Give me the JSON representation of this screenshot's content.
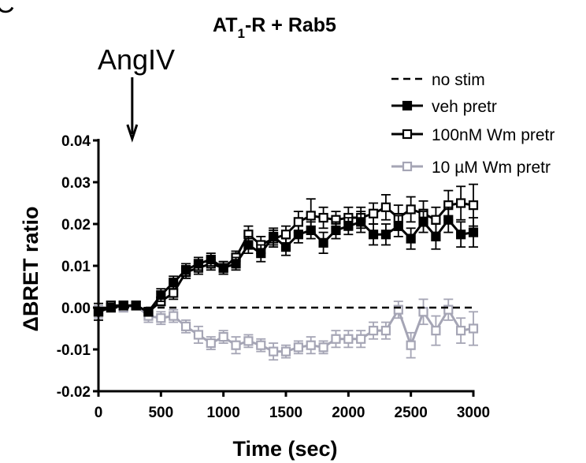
{
  "panel_label": "C",
  "chart_data": {
    "type": "line",
    "title_main": "AT",
    "title_sub": "1",
    "title_tail": "-R + Rab5",
    "annotation": {
      "text": "AngIV",
      "x": 270
    },
    "xlabel": "Time (sec)",
    "ylabel": "ΔBRET ratio",
    "xlim": [
      0,
      3000
    ],
    "ylim": [
      -0.02,
      0.04
    ],
    "xticks": [
      0,
      500,
      1000,
      1500,
      2000,
      2500,
      3000
    ],
    "xtick_labels": [
      "0",
      "500",
      "1000",
      "1500",
      "2000",
      "2500",
      "3000"
    ],
    "yticks": [
      -0.02,
      -0.01,
      0.0,
      0.01,
      0.02,
      0.03,
      0.04
    ],
    "ytick_labels": [
      "-0.02",
      "-0.01",
      "0.00",
      "0.01",
      "0.02",
      "0.03",
      "0.04"
    ],
    "grid": false,
    "legend_position": "top-right",
    "x": [
      0,
      100,
      200,
      300,
      400,
      500,
      600,
      700,
      800,
      900,
      1000,
      1100,
      1200,
      1300,
      1400,
      1500,
      1600,
      1700,
      1800,
      1900,
      2000,
      2100,
      2200,
      2300,
      2400,
      2500,
      2600,
      2700,
      2800,
      2900,
      3000
    ],
    "series": [
      {
        "name": "no stim",
        "style": "dashed",
        "color": "#000000",
        "marker": "none",
        "values": [
          0,
          0,
          0,
          0,
          0,
          0,
          0,
          0,
          0,
          0,
          0,
          0,
          0,
          0,
          0,
          0,
          0,
          0,
          0,
          0,
          0,
          0,
          0,
          0,
          0,
          0,
          0,
          0,
          0,
          0,
          0
        ],
        "errors": []
      },
      {
        "name": "veh pretr",
        "style": "solid",
        "color": "#000000",
        "marker": "filled-square",
        "values": [
          -0.001,
          0.0,
          0.0005,
          0.0005,
          -0.001,
          0.003,
          0.006,
          0.009,
          0.0105,
          0.0115,
          0.0095,
          0.0105,
          0.015,
          0.013,
          0.017,
          0.0145,
          0.0175,
          0.0185,
          0.0155,
          0.0185,
          0.0195,
          0.0205,
          0.0175,
          0.0175,
          0.0195,
          0.0165,
          0.0205,
          0.017,
          0.021,
          0.0175,
          0.018
        ],
        "errors": [
          0.002,
          0.001,
          0.001,
          0.001,
          0.001,
          0.0015,
          0.0015,
          0.0015,
          0.0015,
          0.0015,
          0.0015,
          0.0015,
          0.002,
          0.002,
          0.002,
          0.002,
          0.002,
          0.002,
          0.0025,
          0.002,
          0.002,
          0.0025,
          0.0025,
          0.0025,
          0.0025,
          0.0025,
          0.0025,
          0.003,
          0.003,
          0.003,
          0.0035
        ]
      },
      {
        "name": "100nM Wm pretr",
        "style": "solid",
        "color": "#000000",
        "marker": "open-square",
        "values": [
          -0.001,
          0.0005,
          0.0005,
          0.0005,
          -0.001,
          0.0015,
          0.0035,
          0.0085,
          0.0095,
          0.0105,
          0.0095,
          0.012,
          0.0175,
          0.015,
          0.0165,
          0.0175,
          0.0205,
          0.022,
          0.0215,
          0.021,
          0.0215,
          0.0215,
          0.0225,
          0.024,
          0.0215,
          0.0235,
          0.0225,
          0.021,
          0.0245,
          0.025,
          0.0245
        ],
        "errors": [
          0.001,
          0.001,
          0.001,
          0.001,
          0.001,
          0.001,
          0.0015,
          0.0015,
          0.0015,
          0.0015,
          0.0015,
          0.0015,
          0.002,
          0.002,
          0.002,
          0.002,
          0.0025,
          0.004,
          0.0025,
          0.002,
          0.0025,
          0.0025,
          0.0025,
          0.003,
          0.003,
          0.003,
          0.003,
          0.003,
          0.0035,
          0.004,
          0.005
        ]
      },
      {
        "name": "10 µM Wm pretr",
        "style": "solid",
        "color": "#a5a5b5",
        "marker": "open-square",
        "values": [
          -0.001,
          0.0005,
          0.0,
          0.0005,
          -0.002,
          -0.0025,
          -0.002,
          -0.0045,
          -0.0065,
          -0.0085,
          -0.007,
          -0.009,
          -0.008,
          -0.009,
          -0.0105,
          -0.0105,
          -0.0095,
          -0.009,
          -0.0095,
          -0.0075,
          -0.0075,
          -0.0075,
          -0.0055,
          -0.0055,
          -0.0005,
          -0.009,
          -0.001,
          -0.0055,
          -0.0005,
          -0.0055,
          -0.005
        ],
        "errors": [
          0.0015,
          0.001,
          0.001,
          0.001,
          0.0015,
          0.0015,
          0.0015,
          0.0015,
          0.002,
          0.0015,
          0.0015,
          0.002,
          0.0015,
          0.0015,
          0.002,
          0.0015,
          0.0015,
          0.002,
          0.0015,
          0.002,
          0.002,
          0.002,
          0.002,
          0.002,
          0.002,
          0.003,
          0.003,
          0.0035,
          0.0025,
          0.003,
          0.004
        ]
      }
    ]
  }
}
